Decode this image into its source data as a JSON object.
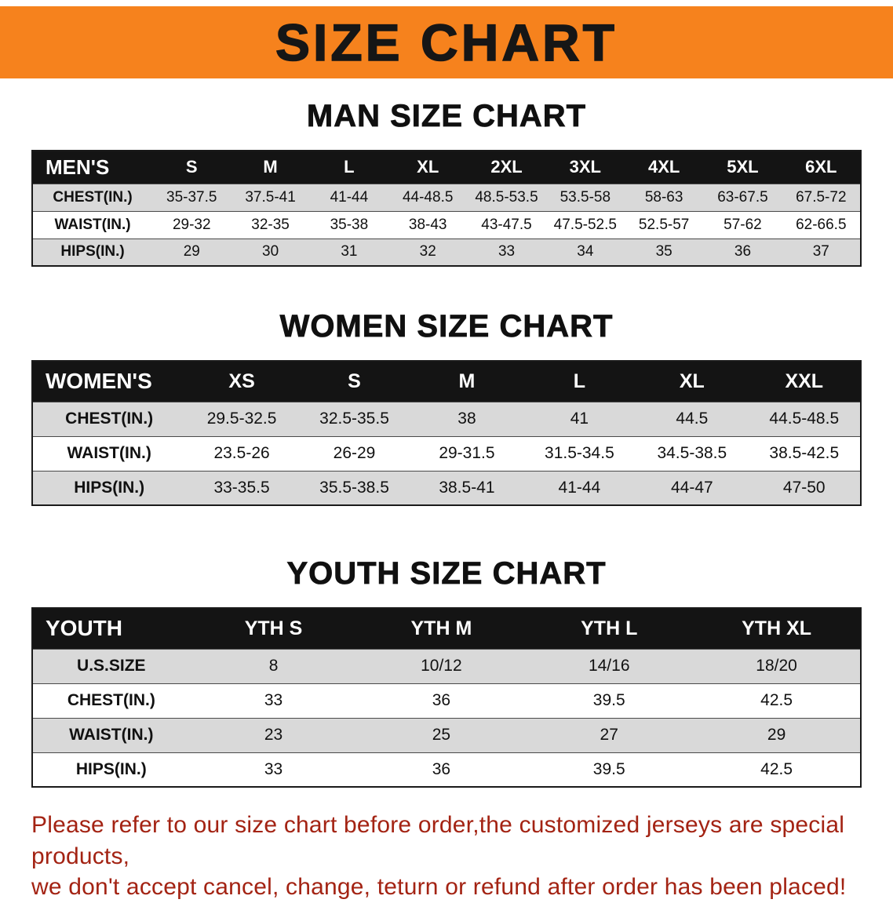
{
  "banner": {
    "title": "SIZE CHART"
  },
  "colors": {
    "banner_bg": "#f6821d",
    "table_header_bg": "#141414",
    "row_stripe": "#d9d9d9",
    "disclaimer_text": "#a32313"
  },
  "sections": {
    "men": {
      "heading": "MAN SIZE CHART",
      "table": {
        "header": [
          "MEN'S",
          "S",
          "M",
          "L",
          "XL",
          "2XL",
          "3XL",
          "4XL",
          "5XL",
          "6XL"
        ],
        "rows": [
          [
            "CHEST(IN.)",
            "35-37.5",
            "37.5-41",
            "41-44",
            "44-48.5",
            "48.5-53.5",
            "53.5-58",
            "58-63",
            "63-67.5",
            "67.5-72"
          ],
          [
            "WAIST(IN.)",
            "29-32",
            "32-35",
            "35-38",
            "38-43",
            "43-47.5",
            "47.5-52.5",
            "52.5-57",
            "57-62",
            "62-66.5"
          ],
          [
            "HIPS(IN.)",
            "29",
            "30",
            "31",
            "32",
            "33",
            "34",
            "35",
            "36",
            "37"
          ]
        ]
      }
    },
    "women": {
      "heading": "WOMEN SIZE CHART",
      "table": {
        "header": [
          "WOMEN'S",
          "XS",
          "S",
          "M",
          "L",
          "XL",
          "XXL"
        ],
        "rows": [
          [
            "CHEST(IN.)",
            "29.5-32.5",
            "32.5-35.5",
            "38",
            "41",
            "44.5",
            "44.5-48.5"
          ],
          [
            "WAIST(IN.)",
            "23.5-26",
            "26-29",
            "29-31.5",
            "31.5-34.5",
            "34.5-38.5",
            "38.5-42.5"
          ],
          [
            "HIPS(IN.)",
            "33-35.5",
            "35.5-38.5",
            "38.5-41",
            "41-44",
            "44-47",
            "47-50"
          ]
        ]
      }
    },
    "youth": {
      "heading": "YOUTH SIZE CHART",
      "table": {
        "header": [
          "YOUTH",
          "YTH S",
          "YTH M",
          "YTH L",
          "YTH XL"
        ],
        "rows": [
          [
            "U.S.SIZE",
            "8",
            "10/12",
            "14/16",
            "18/20"
          ],
          [
            "CHEST(IN.)",
            "33",
            "36",
            "39.5",
            "42.5"
          ],
          [
            "WAIST(IN.)",
            "23",
            "25",
            "27",
            "29"
          ],
          [
            "HIPS(IN.)",
            "33",
            "36",
            "39.5",
            "42.5"
          ]
        ]
      }
    }
  },
  "disclaimer": {
    "line1": "Please refer to our size chart before order,the customized jerseys are special products,",
    "line2": "we don't accept cancel, change, teturn or refund after order has been placed!"
  }
}
